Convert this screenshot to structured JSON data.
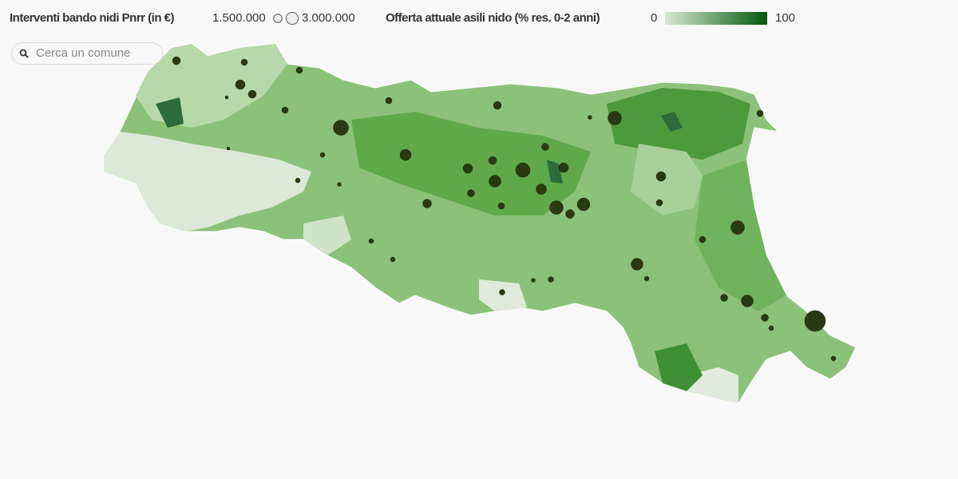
{
  "legend": {
    "size": {
      "title": "Interventi bando nidi Pnrr (in €)",
      "ticks": [
        {
          "value": 1500000,
          "label": "1.500.000"
        },
        {
          "value": 3000000,
          "label": "3.000.000"
        }
      ]
    },
    "color": {
      "title": "Offerta attuale asili nido (% res. 0-2 anni)",
      "min": 0,
      "max": 100,
      "colors": [
        "#d9ead3",
        "#00580a"
      ]
    }
  },
  "search": {
    "placeholder": "Cerca un comune"
  },
  "bubbles": {
    "color": "#2a3a10",
    "values": [
      1330000,
      850000,
      850000,
      1920000,
      1330000,
      850000,
      4810000,
      850000,
      1330000,
      3850000,
      850000,
      2610000,
      1920000,
      1330000,
      4320000,
      1080000,
      1920000,
      3000000,
      2250000,
      1080000,
      1610000,
      3850000,
      3410000,
      1610000,
      850000,
      1920000,
      850000,
      3850000,
      850000,
      3000000,
      480000,
      650000,
      330000,
      650000,
      480000,
      480000,
      480000,
      480000,
      1080000,
      3000000,
      1080000,
      480000,
      9010000,
      480000,
      210000,
      210000,
      330000,
      330000
    ]
  }
}
